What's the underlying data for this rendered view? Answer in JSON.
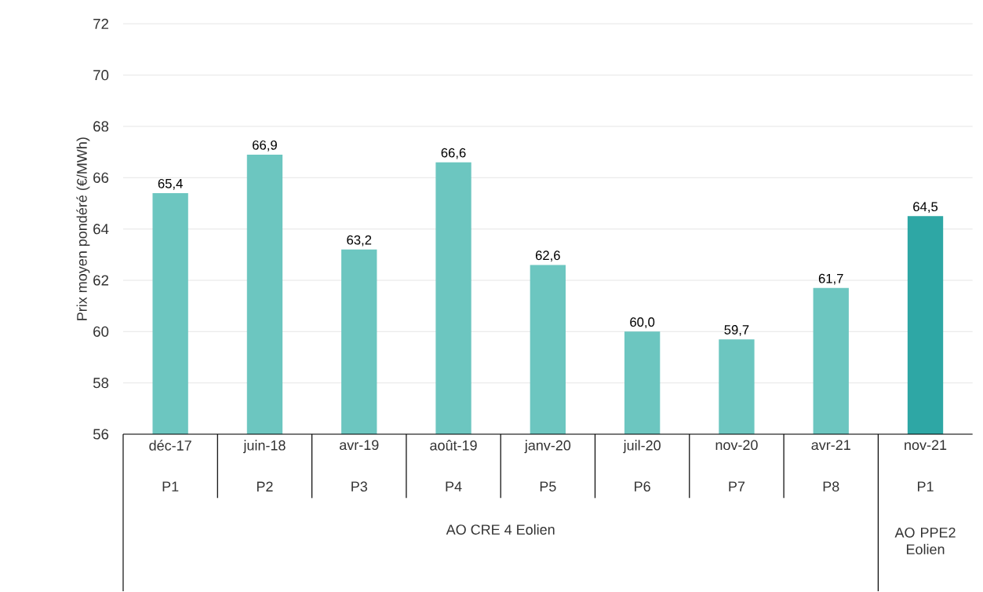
{
  "chart_data": {
    "type": "bar",
    "ylabel": "Prix moyen pondéré (€/MWh)",
    "categories": [
      "déc-17",
      "juin-18",
      "avr-19",
      "août-19",
      "janv-20",
      "juil-20",
      "nov-20",
      "avr-21",
      "nov-21"
    ],
    "values": [
      65.4,
      66.9,
      63.2,
      66.6,
      62.6,
      60.0,
      59.7,
      61.7,
      64.5
    ],
    "value_labels": [
      "65,4",
      "66,9",
      "63,2",
      "66,6",
      "62,6",
      "60,0",
      "59,7",
      "61,7",
      "64,5"
    ],
    "colors": [
      "#6cc6c0",
      "#6cc6c0",
      "#6cc6c0",
      "#6cc6c0",
      "#6cc6c0",
      "#6cc6c0",
      "#6cc6c0",
      "#6cc6c0",
      "#2ea7a5"
    ],
    "ylim": [
      56,
      72
    ],
    "yticks": [
      56,
      58,
      60,
      62,
      64,
      66,
      68,
      70,
      72
    ],
    "grid": "y",
    "annotations": [
      "P1",
      "P2",
      "P3",
      "P4",
      "P5",
      "P6",
      "P7",
      "P8",
      "P1",
      "AO CRE 4 Eolien",
      "AO PPE2 Eolien"
    ]
  }
}
